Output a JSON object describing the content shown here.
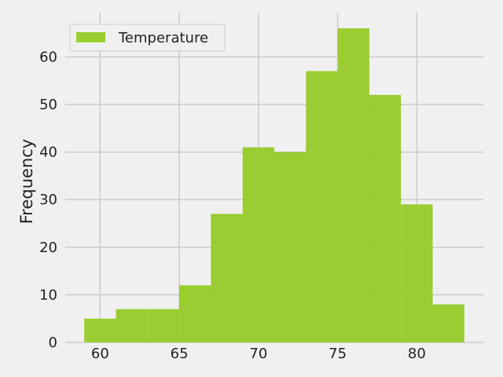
{
  "chart_data": {
    "type": "bar",
    "subtype": "histogram",
    "bin_edges": [
      59,
      61,
      63,
      65,
      67,
      69,
      71,
      73,
      75,
      77,
      79,
      81,
      83
    ],
    "values": [
      5,
      7,
      7,
      12,
      27,
      41,
      40,
      57,
      66,
      52,
      29,
      8
    ],
    "series": [
      {
        "name": "Temperature",
        "values": [
          5,
          7,
          7,
          12,
          27,
          41,
          40,
          57,
          66,
          52,
          29,
          8
        ]
      }
    ],
    "xlabel": "",
    "ylabel": "Frequency",
    "xlim": [
      57.8,
      84.2
    ],
    "ylim": [
      0,
      69.3
    ],
    "xticks": [
      "60",
      "65",
      "70",
      "75",
      "80"
    ],
    "yticks": [
      "0",
      "10",
      "20",
      "30",
      "40",
      "50",
      "60"
    ],
    "grid": true,
    "legend_position": "top-left",
    "colors": {
      "bar": "#9acd32",
      "background": "#f0f0f0",
      "grid": "#cbcbcb",
      "text": "#222222"
    }
  }
}
